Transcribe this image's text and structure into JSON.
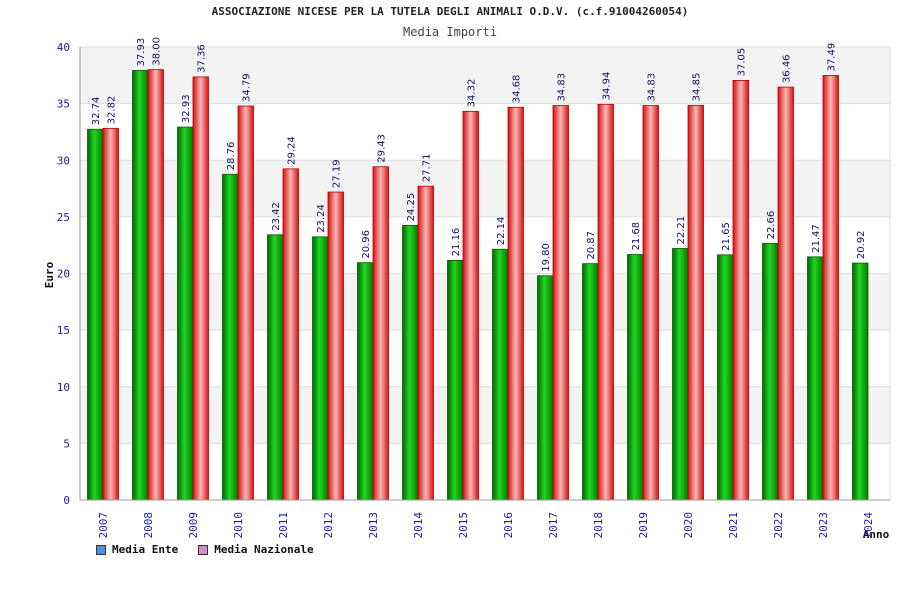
{
  "header": {
    "title": "ASSOCIAZIONE NICESE PER LA TUTELA DEGLI ANIMALI O.D.V. (c.f.91004260054)",
    "subtitle": "Media Importi"
  },
  "chart_data": {
    "type": "bar",
    "title": "Media Importi",
    "xlabel": "Anno",
    "ylabel": "Euro",
    "ylim": [
      0,
      40
    ],
    "yticks": [
      0,
      5,
      10,
      15,
      20,
      25,
      30,
      35,
      40
    ],
    "categories": [
      "2007",
      "2008",
      "2009",
      "2010",
      "2011",
      "2012",
      "2013",
      "2014",
      "2015",
      "2016",
      "2017",
      "2018",
      "2019",
      "2020",
      "2021",
      "2022",
      "2023",
      "2024"
    ],
    "series": [
      {
        "name": "Media Ente",
        "color": "#00b400",
        "values": [
          32.74,
          37.93,
          32.93,
          28.76,
          23.42,
          23.24,
          20.96,
          24.25,
          21.16,
          22.14,
          19.8,
          20.87,
          21.68,
          22.21,
          21.65,
          22.66,
          21.47,
          20.92
        ],
        "labels": [
          "32.74",
          "37.93",
          "32.93",
          "28.76",
          "23.42",
          "23.24",
          "20.96",
          "24.25",
          "21.16",
          "22.14",
          "19.80",
          "20.87",
          "21.68",
          "22.21",
          "21.65",
          "22.66",
          "21.47",
          "20.92"
        ]
      },
      {
        "name": "Media Nazionale",
        "color": "#ee2a2a",
        "values": [
          32.82,
          38.0,
          37.36,
          34.79,
          29.24,
          27.19,
          29.43,
          27.71,
          34.32,
          34.68,
          34.83,
          34.94,
          34.83,
          34.85,
          37.05,
          36.46,
          37.49,
          null
        ],
        "labels": [
          "32.82",
          "38.00",
          "37.36",
          "34.79",
          "29.24",
          "27.19",
          "29.43",
          "27.71",
          "34.32",
          "34.68",
          "34.83",
          "34.94",
          "34.83",
          "34.85",
          "37.05",
          "36.46",
          "37.49",
          ""
        ]
      }
    ],
    "grid": true,
    "legend": "bottom-left"
  },
  "legend": {
    "ente_color": "#4f8fe0",
    "naz_color": "#d58bc7"
  }
}
